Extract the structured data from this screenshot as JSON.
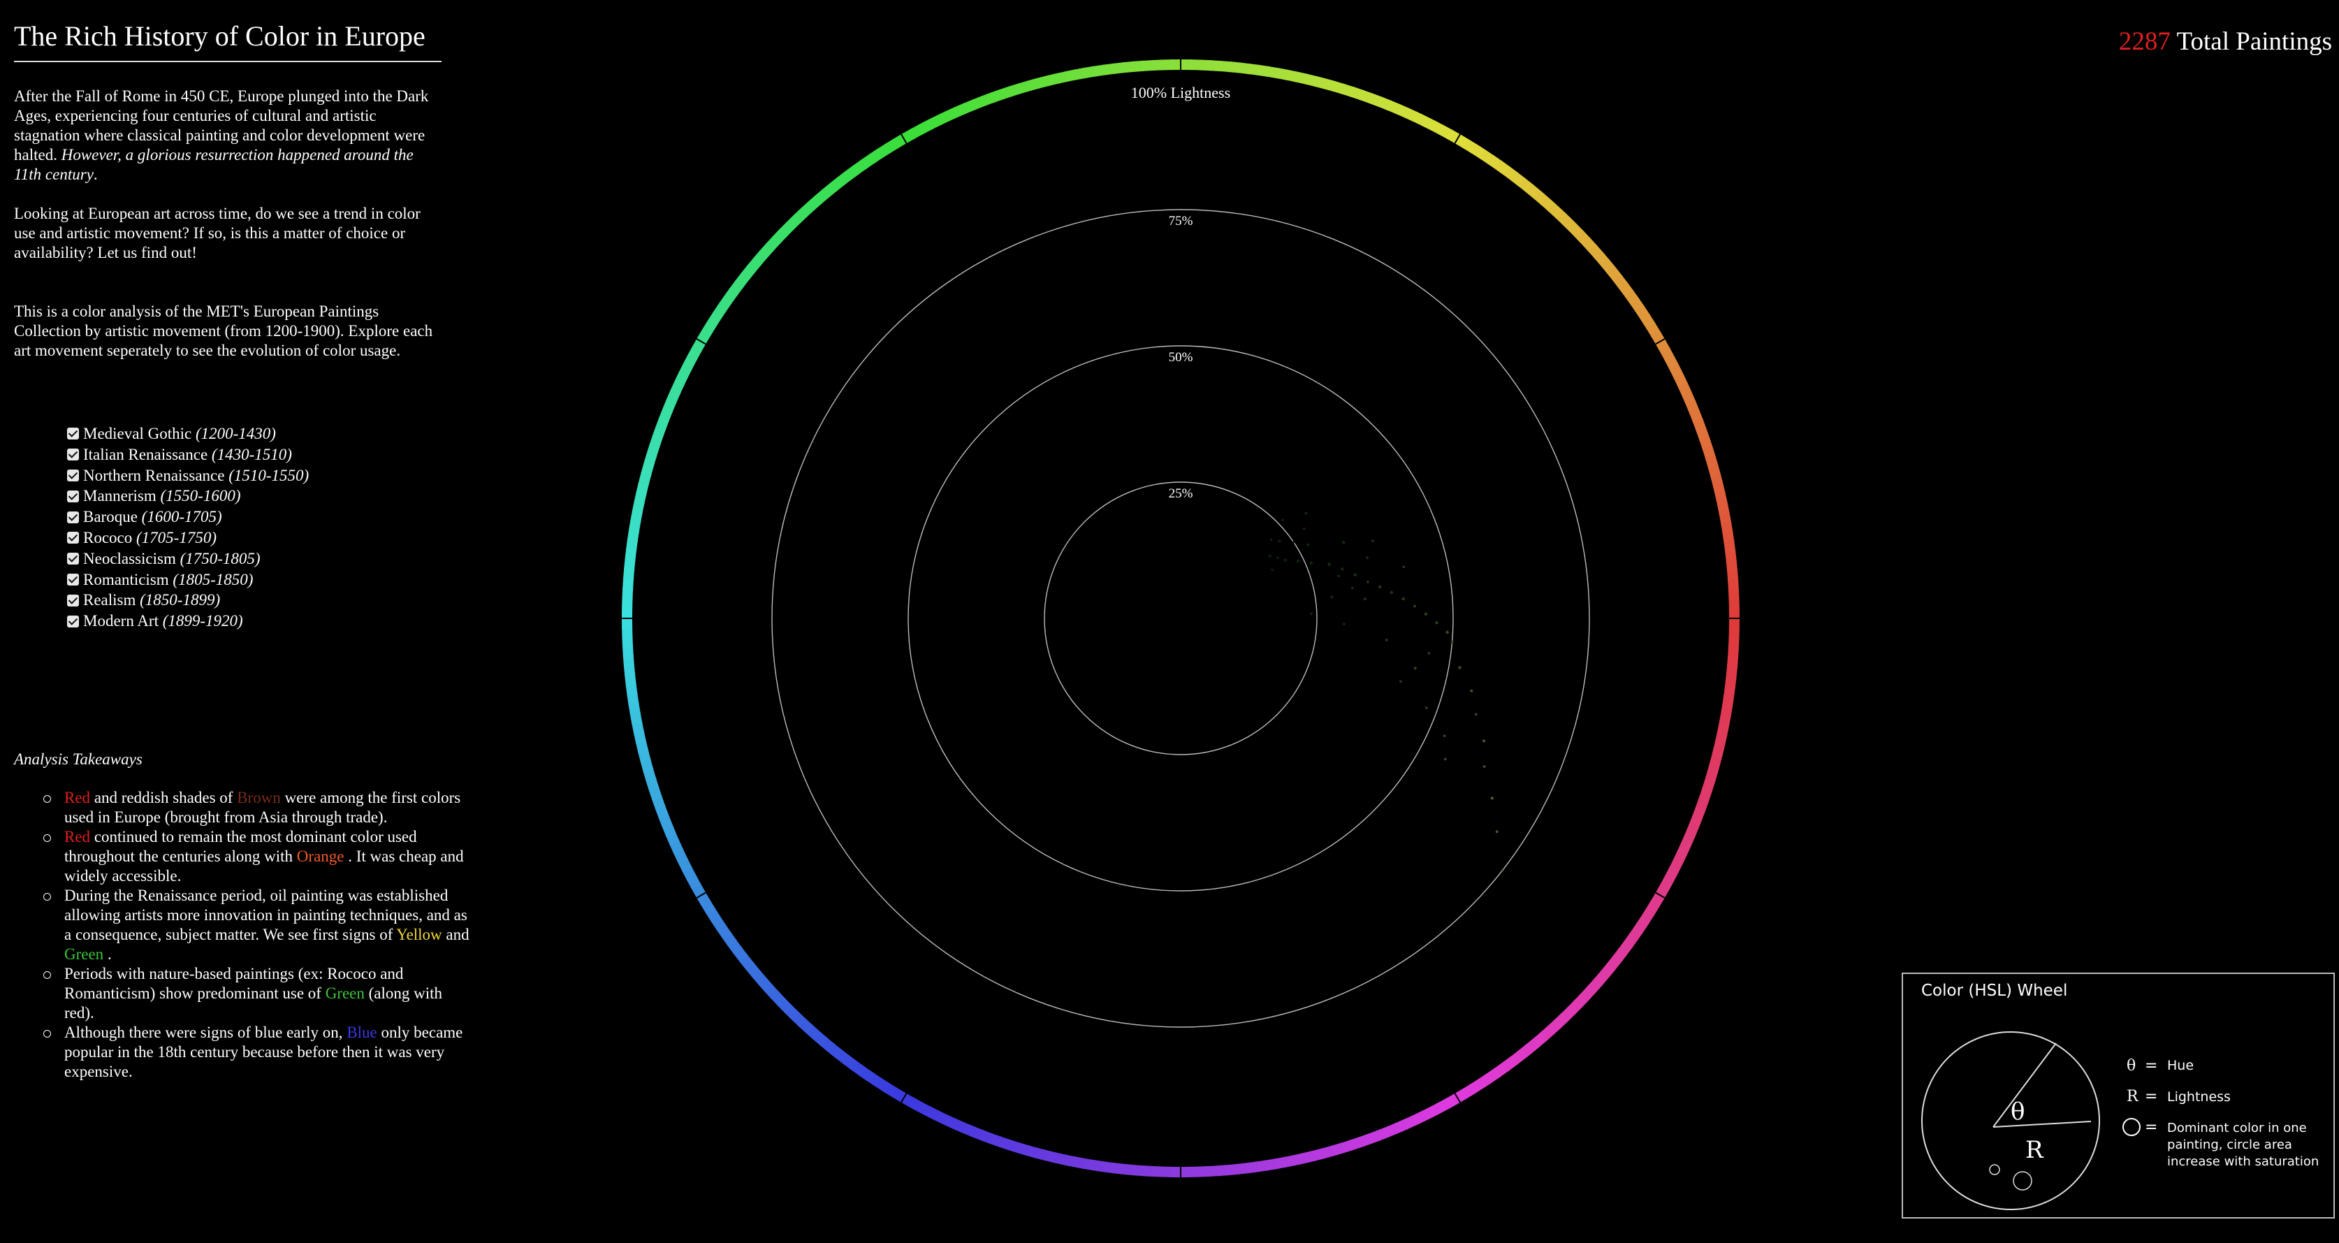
{
  "title": "The Rich History of Color in Europe",
  "intro": {
    "text": "After the Fall of Rome in 450 CE, Europe plunged into the Dark Ages, experiencing four centuries of cultural and artistic stagnation where classical painting and color development were halted. ",
    "emphasis": "However, a glorious resurrection happened around the 11th century",
    "end": "."
  },
  "question": "Looking at European art across time, do we see a trend in color use and artistic movement? If so, is this a matter of choice or availability? Let us find out!",
  "about": "This is a color analysis of the MET's European Paintings Collection by artistic movement (from 1200-1900). Explore each art movement seperately to see the evolution of color usage.",
  "movements": [
    {
      "name": "Medieval Gothic",
      "years": "(1200-1430)",
      "checked": true
    },
    {
      "name": "Italian Renaissance",
      "years": "(1430-1510)",
      "checked": true
    },
    {
      "name": "Northern Renaissance",
      "years": "(1510-1550)",
      "checked": true
    },
    {
      "name": "Mannerism",
      "years": "(1550-1600)",
      "checked": true
    },
    {
      "name": "Baroque",
      "years": "(1600-1705)",
      "checked": true
    },
    {
      "name": "Rococo",
      "years": "(1705-1750)",
      "checked": true
    },
    {
      "name": "Neoclassicism",
      "years": "(1750-1805)",
      "checked": true
    },
    {
      "name": "Romanticism",
      "years": "(1805-1850)",
      "checked": true
    },
    {
      "name": "Realism",
      "years": "(1850-1899)",
      "checked": true
    },
    {
      "name": "Modern Art",
      "years": "(1899-1920)",
      "checked": true
    }
  ],
  "takeaways": {
    "heading": "Analysis Takeaways",
    "items": [
      [
        {
          "t": "Red",
          "c": "red"
        },
        {
          "t": " and reddish shades of "
        },
        {
          "t": "Brown",
          "c": "brown"
        },
        {
          "t": " were among the first colors used in Europe (brought from Asia through trade)."
        }
      ],
      [
        {
          "t": "Red",
          "c": "red"
        },
        {
          "t": " continued to remain the most dominant color used throughout the centuries along with "
        },
        {
          "t": "Orange",
          "c": "orange"
        },
        {
          "t": " . It was cheap and widely accessible."
        }
      ],
      [
        {
          "t": "During the Renaissance period, oil painting was established allowing artists more innovation in painting techniques, and as a consequence, subject matter. We see first signs of "
        },
        {
          "t": "Yellow",
          "c": "yellow"
        },
        {
          "t": " and "
        },
        {
          "t": "Green",
          "c": "green"
        },
        {
          "t": " ."
        }
      ],
      [
        {
          "t": "Periods with nature-based paintings (ex: Rococo and Romanticism) show predominant use of "
        },
        {
          "t": "Green",
          "c": "green"
        },
        {
          "t": " (along with red)."
        }
      ],
      [
        {
          "t": "Although there were signs of blue early on, "
        },
        {
          "t": "Blue",
          "c": "blue"
        },
        {
          "t": " only became popular in the 18th century because before then it was very expensive."
        }
      ]
    ]
  },
  "counter": {
    "value": "2287",
    "label": " Total Paintings"
  },
  "chart_data": {
    "type": "scatter",
    "coordinate_system": "polar",
    "theta": "hue",
    "radius": "lightness",
    "size": "saturation",
    "radial_ticks": [
      "25%",
      "50%",
      "75%",
      "100% Lightness"
    ],
    "radial_tick_values": [
      0.25,
      0.5,
      0.75,
      1.0
    ],
    "hue_ring": true,
    "total_paintings": 2287,
    "points": [
      {
        "hue": 125,
        "lightness": 0.2,
        "saturation": 0.5
      },
      {
        "hue": 122,
        "lightness": 0.21,
        "saturation": 0.4
      },
      {
        "hue": 119,
        "lightness": 0.22,
        "saturation": 0.5
      },
      {
        "hue": 128,
        "lightness": 0.23,
        "saturation": 0.4
      },
      {
        "hue": 116,
        "lightness": 0.24,
        "saturation": 0.5
      },
      {
        "hue": 124,
        "lightness": 0.25,
        "saturation": 0.3
      },
      {
        "hue": 120,
        "lightness": 0.27,
        "saturation": 0.4
      },
      {
        "hue": 113,
        "lightness": 0.26,
        "saturation": 0.5
      },
      {
        "hue": 126,
        "lightness": 0.28,
        "saturation": 0.3
      },
      {
        "hue": 131,
        "lightness": 0.22,
        "saturation": 0.3
      },
      {
        "hue": 110,
        "lightness": 0.29,
        "saturation": 0.5
      },
      {
        "hue": 107,
        "lightness": 0.31,
        "saturation": 0.4
      },
      {
        "hue": 104,
        "lightness": 0.33,
        "saturation": 0.5
      },
      {
        "hue": 101,
        "lightness": 0.35,
        "saturation": 0.4
      },
      {
        "hue": 99,
        "lightness": 0.37,
        "saturation": 0.5
      },
      {
        "hue": 105,
        "lightness": 0.3,
        "saturation": 0.3
      },
      {
        "hue": 97,
        "lightness": 0.39,
        "saturation": 0.4
      },
      {
        "hue": 95,
        "lightness": 0.41,
        "saturation": 0.5
      },
      {
        "hue": 93,
        "lightness": 0.43,
        "saturation": 0.4
      },
      {
        "hue": 91,
        "lightness": 0.45,
        "saturation": 0.5
      },
      {
        "hue": 100,
        "lightness": 0.32,
        "saturation": 0.3
      },
      {
        "hue": 96,
        "lightness": 0.34,
        "saturation": 0.4
      },
      {
        "hue": 89,
        "lightness": 0.47,
        "saturation": 0.4
      },
      {
        "hue": 87,
        "lightness": 0.49,
        "saturation": 0.5
      },
      {
        "hue": 85,
        "lightness": 0.5,
        "saturation": 0.4
      },
      {
        "hue": 80,
        "lightness": 0.52,
        "saturation": 0.5
      },
      {
        "hue": 76,
        "lightness": 0.55,
        "saturation": 0.4
      },
      {
        "hue": 72,
        "lightness": 0.57,
        "saturation": 0.3
      },
      {
        "hue": 68,
        "lightness": 0.6,
        "saturation": 0.4
      },
      {
        "hue": 64,
        "lightness": 0.62,
        "saturation": 0.3
      },
      {
        "hue": 82,
        "lightness": 0.46,
        "saturation": 0.3
      },
      {
        "hue": 78,
        "lightness": 0.44,
        "saturation": 0.4
      },
      {
        "hue": 70,
        "lightness": 0.48,
        "saturation": 0.3
      },
      {
        "hue": 66,
        "lightness": 0.53,
        "saturation": 0.3
      },
      {
        "hue": 60,
        "lightness": 0.66,
        "saturation": 0.4
      },
      {
        "hue": 112,
        "lightness": 0.38,
        "saturation": 0.3
      },
      {
        "hue": 108,
        "lightness": 0.36,
        "saturation": 0.3
      },
      {
        "hue": 115,
        "lightness": 0.33,
        "saturation": 0.4
      },
      {
        "hue": 98,
        "lightness": 0.28,
        "saturation": 0.4
      },
      {
        "hue": 130,
        "lightness": 0.3,
        "saturation": 0.3
      },
      {
        "hue": 92,
        "lightness": 0.24,
        "saturation": 0.3
      },
      {
        "hue": 88,
        "lightness": 0.3,
        "saturation": 0.3
      },
      {
        "hue": 103,
        "lightness": 0.42,
        "saturation": 0.3
      },
      {
        "hue": 84,
        "lightness": 0.38,
        "saturation": 0.4
      },
      {
        "hue": 74,
        "lightness": 0.42,
        "saturation": 0.3
      },
      {
        "hue": 62,
        "lightness": 0.55,
        "saturation": 0.3
      },
      {
        "hue": 56,
        "lightness": 0.7,
        "saturation": 0.3
      },
      {
        "hue": 52,
        "lightness": 0.75,
        "saturation": 0.3
      },
      {
        "hue": 118,
        "lightness": 0.19,
        "saturation": 0.4
      },
      {
        "hue": 134,
        "lightness": 0.26,
        "saturation": 0.3
      }
    ]
  },
  "legend": {
    "title": "Color (HSL) Wheel",
    "theta_symbol": "θ",
    "r_symbol": "R",
    "equals": "=",
    "hue_label": "Hue",
    "lightness_label": "Lightness",
    "circle_desc_1": "Dominant color in one",
    "circle_desc_2": "painting, circle area",
    "circle_desc_3": "increase with saturation"
  }
}
